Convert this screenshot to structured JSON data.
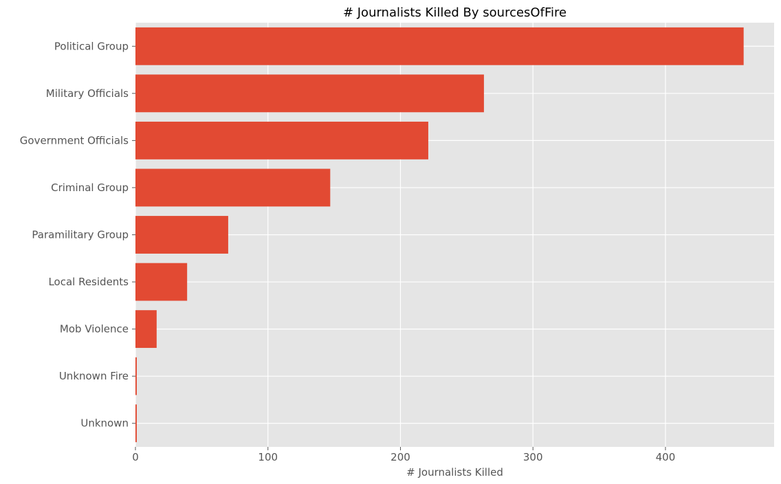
{
  "chart_data": {
    "type": "bar",
    "orientation": "horizontal",
    "title": "# Journalists Killed By sourcesOfFire",
    "xlabel": "# Journalists Killed",
    "ylabel": "",
    "categories": [
      "Political Group",
      "Military Officials",
      "Government Officials",
      "Criminal Group",
      "Paramilitary Group",
      "Local Residents",
      "Mob Violence",
      "Unknown Fire",
      "Unknown"
    ],
    "values": [
      459,
      263,
      221,
      147,
      70,
      39,
      16,
      1,
      1
    ],
    "xlim": [
      0,
      482
    ],
    "xticks": [
      0,
      100,
      200,
      300,
      400
    ],
    "grid": true,
    "colors": {
      "bar": "#E24A33",
      "background": "#E5E5E5",
      "grid": "#FFFFFF",
      "tick_text": "#555555",
      "title_text": "#000000"
    }
  }
}
